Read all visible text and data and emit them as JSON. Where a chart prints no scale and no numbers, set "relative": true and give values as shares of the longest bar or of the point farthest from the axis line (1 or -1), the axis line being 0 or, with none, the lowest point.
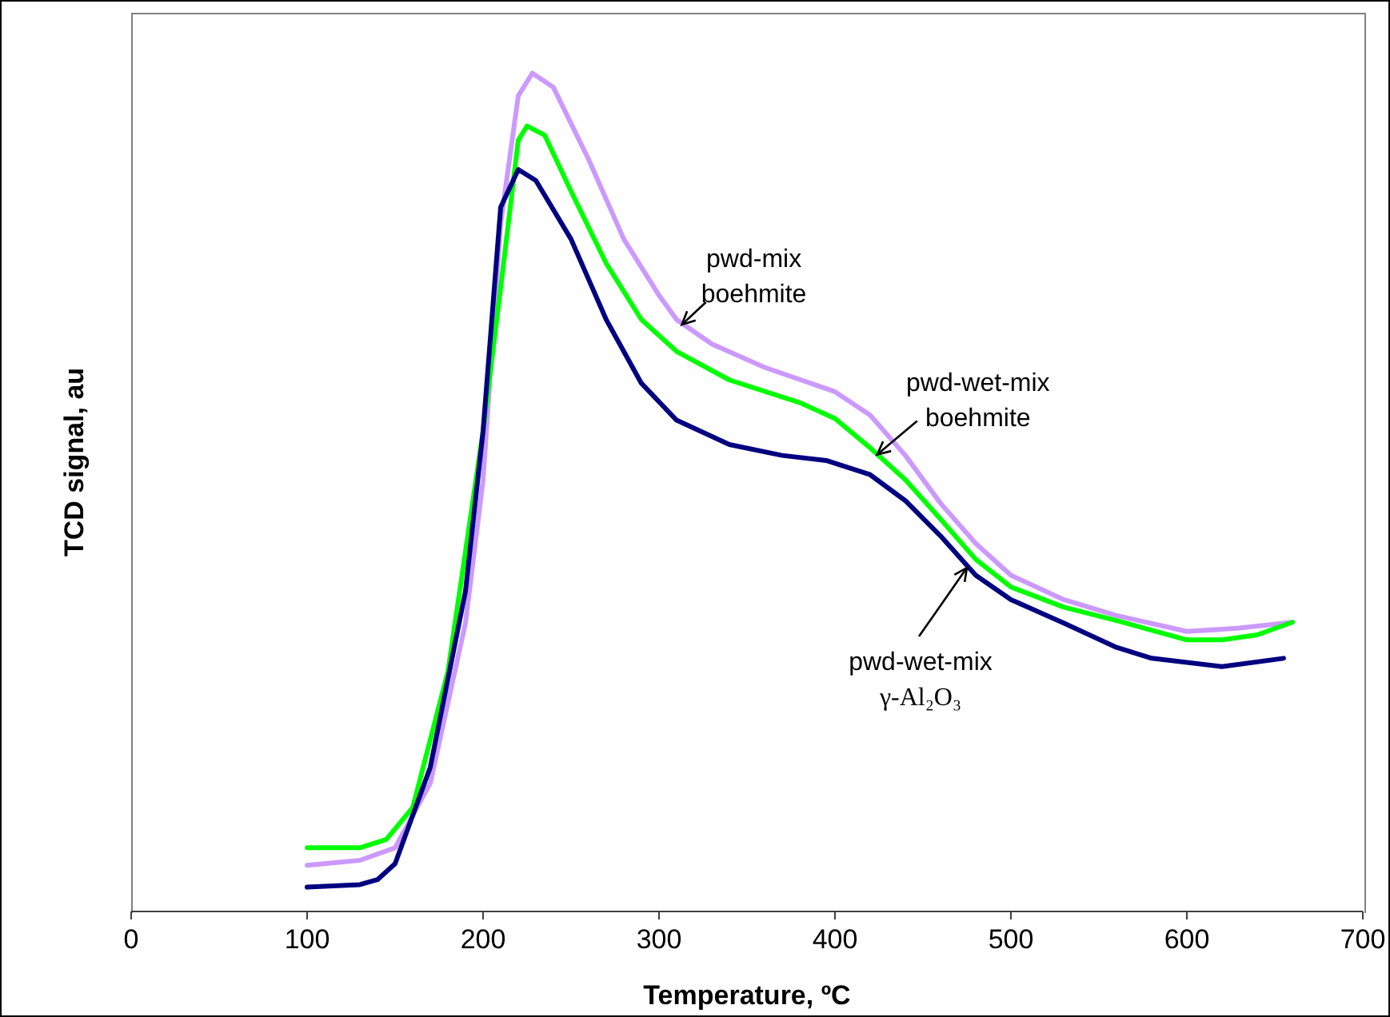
{
  "chart_data": {
    "type": "line",
    "relative": true,
    "xlabel": "Temperature, ºC",
    "ylabel": "TCD signal, au",
    "xlim": [
      0,
      700
    ],
    "xticks": [
      0,
      100,
      200,
      300,
      400,
      500,
      600,
      700
    ],
    "grid": false,
    "legend": false,
    "marker": "none",
    "line_style": "solid",
    "series": [
      {
        "color": "#cc99ff",
        "x": [
          100,
          130,
          150,
          170,
          190,
          200,
          210,
          220,
          228,
          240,
          260,
          280,
          300,
          310,
          330,
          360,
          400,
          420,
          440,
          460,
          480,
          500,
          530,
          560,
          600,
          630,
          660
        ],
        "values": [
          0.055,
          0.061,
          0.076,
          0.153,
          0.344,
          0.515,
          0.821,
          0.973,
          1,
          0.983,
          0.897,
          0.802,
          0.735,
          0.706,
          0.677,
          0.649,
          0.62,
          0.592,
          0.544,
          0.487,
          0.439,
          0.401,
          0.372,
          0.353,
          0.334,
          0.338,
          0.345
        ]
      },
      {
        "color": "#00ff00",
        "x": [
          100,
          130,
          145,
          160,
          180,
          200,
          210,
          220,
          225,
          235,
          250,
          270,
          290,
          310,
          340,
          380,
          400,
          420,
          440,
          460,
          480,
          500,
          530,
          560,
          600,
          620,
          640,
          660
        ],
        "values": [
          0.076,
          0.076,
          0.086,
          0.124,
          0.286,
          0.573,
          0.744,
          0.92,
          0.937,
          0.926,
          0.859,
          0.773,
          0.706,
          0.668,
          0.634,
          0.607,
          0.588,
          0.553,
          0.515,
          0.468,
          0.42,
          0.387,
          0.363,
          0.347,
          0.324,
          0.324,
          0.33,
          0.345
        ]
      },
      {
        "color": "#000080",
        "x": [
          100,
          130,
          140,
          150,
          170,
          190,
          200,
          210,
          220,
          230,
          250,
          270,
          290,
          310,
          340,
          370,
          395,
          420,
          440,
          460,
          480,
          500,
          530,
          560,
          580,
          620,
          655
        ],
        "values": [
          0.029,
          0.032,
          0.038,
          0.057,
          0.172,
          0.382,
          0.573,
          0.84,
          0.885,
          0.872,
          0.802,
          0.706,
          0.63,
          0.586,
          0.557,
          0.544,
          0.538,
          0.521,
          0.49,
          0.448,
          0.401,
          0.372,
          0.344,
          0.315,
          0.302,
          0.292,
          0.302
        ]
      }
    ],
    "annotations": [
      {
        "text": "pwd-mix\nboehmite",
        "x": 313,
        "y": 0.7
      },
      {
        "text": "pwd-wet-mix\nboehmite",
        "x": 424,
        "y": 0.545
      },
      {
        "text": "pwd-wet-mix\nγ-Al₂O₃",
        "x": 475,
        "y": 0.41
      }
    ]
  }
}
